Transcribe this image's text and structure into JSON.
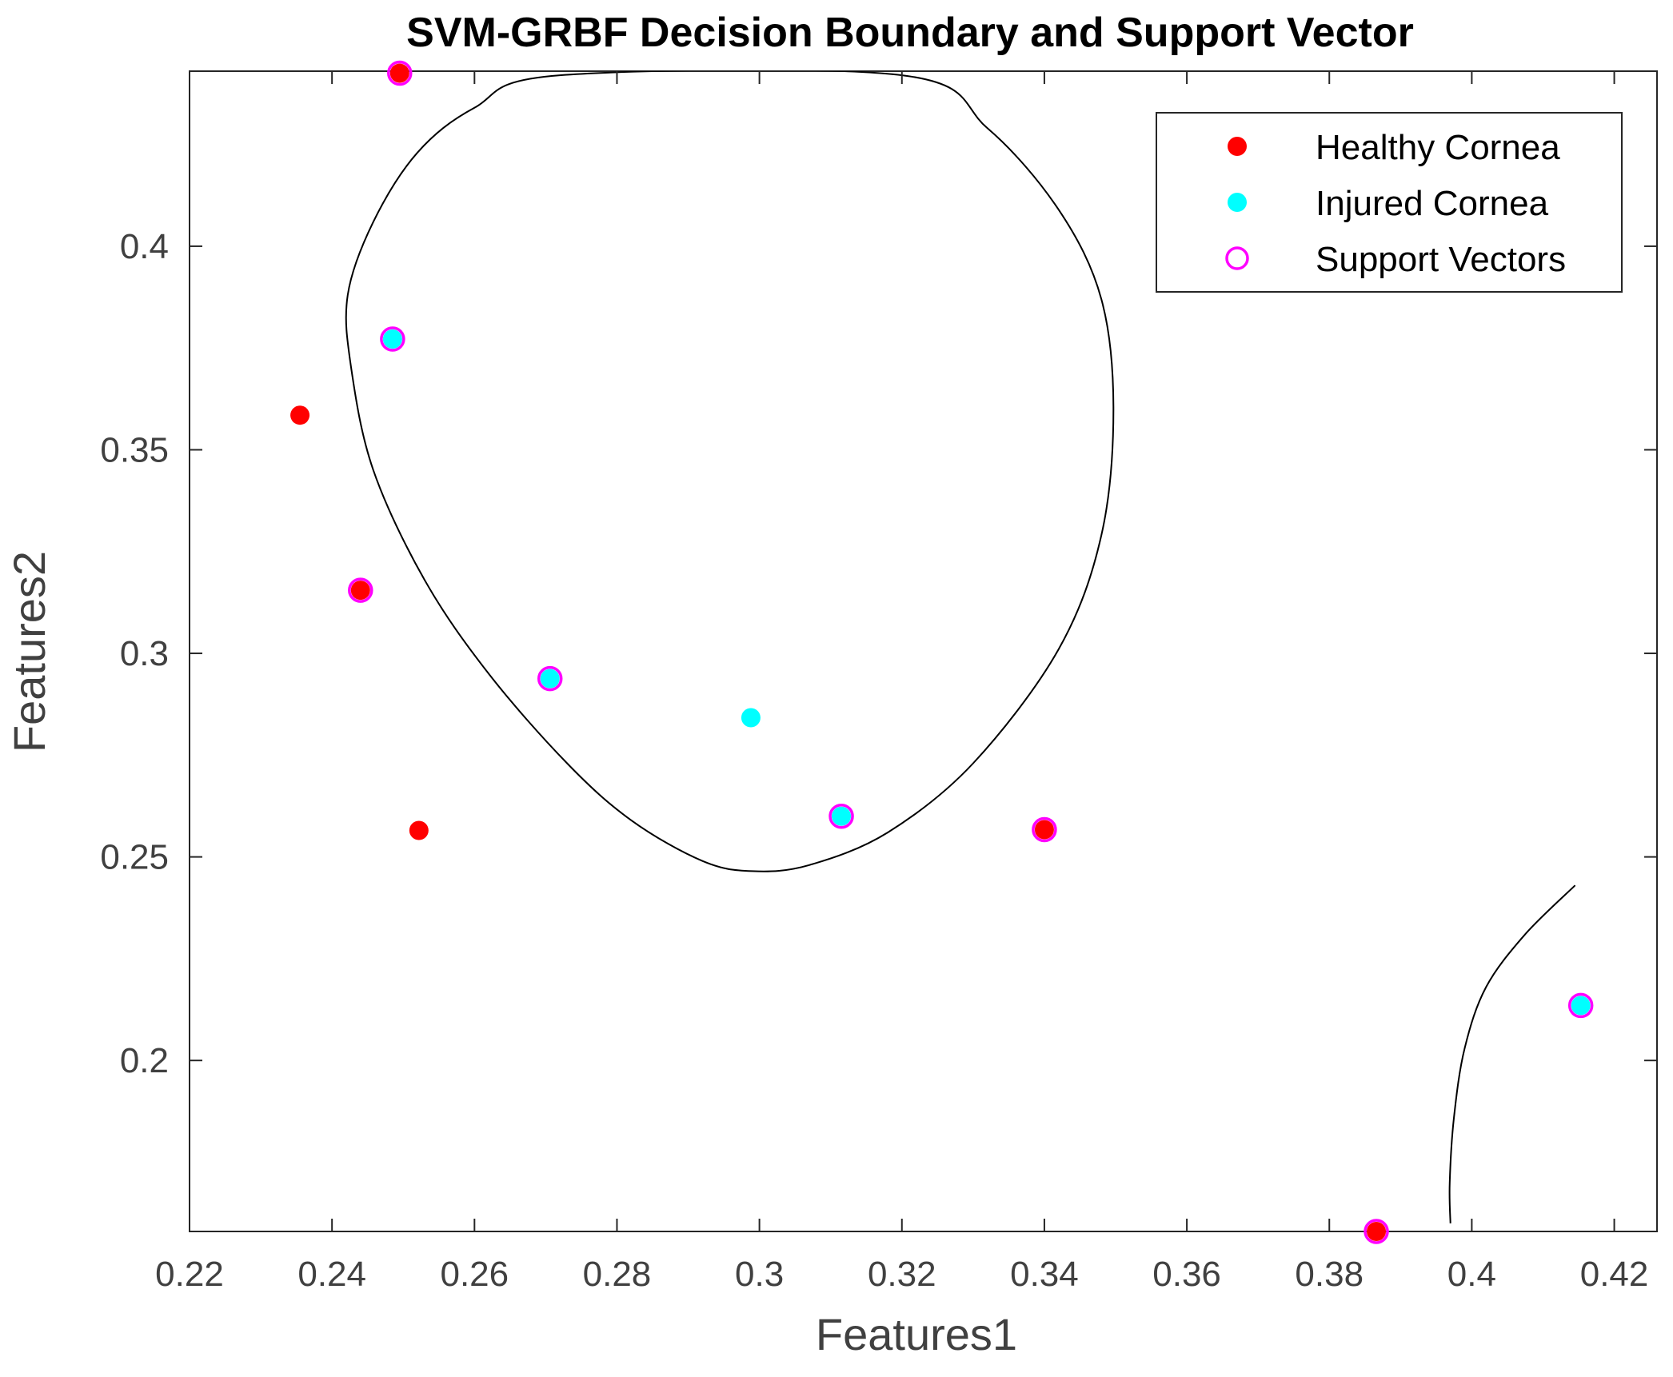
{
  "chart_data": {
    "type": "scatter",
    "title": "SVM-GRBF Decision Boundary and Support Vector",
    "xlabel": "Features1",
    "ylabel": "Features2",
    "xlim": [
      0.22,
      0.426
    ],
    "ylim": [
      0.158,
      0.443
    ],
    "x_ticks": [
      0.22,
      0.24,
      0.26,
      0.28,
      0.3,
      0.32,
      0.34,
      0.36,
      0.38,
      0.4,
      0.42
    ],
    "x_tick_labels": [
      "0.22",
      "0.24",
      "0.26",
      "0.28",
      "0.3",
      "0.32",
      "0.34",
      "0.36",
      "0.38",
      "0.4",
      "0.42"
    ],
    "y_ticks": [
      0.2,
      0.25,
      0.3,
      0.35,
      0.4
    ],
    "y_tick_labels": [
      "0.2",
      "0.25",
      "0.3",
      "0.35",
      "0.4"
    ],
    "grid": false,
    "legend_position": "top-right",
    "legend": [
      {
        "label": "Healthy Cornea",
        "marker": "filled-circle",
        "color": "#ff0000"
      },
      {
        "label": "Injured Cornea",
        "marker": "filled-circle",
        "color": "#00ffff"
      },
      {
        "label": "Support Vectors",
        "marker": "open-circle",
        "color": "#ff00ff"
      }
    ],
    "series": [
      {
        "name": "Healthy Cornea",
        "color": "#ff0000",
        "points": [
          {
            "x": 0.2495,
            "y": 0.4425
          },
          {
            "x": 0.2355,
            "y": 0.3585
          },
          {
            "x": 0.244,
            "y": 0.3155
          },
          {
            "x": 0.2522,
            "y": 0.2565
          },
          {
            "x": 0.34,
            "y": 0.2567
          },
          {
            "x": 0.3866,
            "y": 0.158
          }
        ]
      },
      {
        "name": "Injured Cornea",
        "color": "#00ffff",
        "points": [
          {
            "x": 0.2485,
            "y": 0.3772
          },
          {
            "x": 0.2706,
            "y": 0.2938
          },
          {
            "x": 0.2988,
            "y": 0.2842
          },
          {
            "x": 0.3115,
            "y": 0.26
          },
          {
            "x": 0.4153,
            "y": 0.2135
          }
        ]
      },
      {
        "name": "Support Vectors",
        "color": "#ff00ff",
        "points": [
          {
            "x": 0.2495,
            "y": 0.4425
          },
          {
            "x": 0.2485,
            "y": 0.3772
          },
          {
            "x": 0.244,
            "y": 0.3155
          },
          {
            "x": 0.2706,
            "y": 0.2938
          },
          {
            "x": 0.3115,
            "y": 0.26
          },
          {
            "x": 0.34,
            "y": 0.2567
          },
          {
            "x": 0.3866,
            "y": 0.158
          },
          {
            "x": 0.4153,
            "y": 0.2135
          }
        ]
      }
    ],
    "decision_boundaries": [
      {
        "name": "boundary-closed",
        "closed": true,
        "points": [
          [
            0.272,
            0.442
          ],
          [
            0.26,
            0.434
          ],
          [
            0.252,
            0.423
          ],
          [
            0.2458,
            0.406
          ],
          [
            0.2422,
            0.388
          ],
          [
            0.2427,
            0.37
          ],
          [
            0.2458,
            0.345
          ],
          [
            0.253,
            0.318
          ],
          [
            0.262,
            0.295
          ],
          [
            0.273,
            0.273
          ],
          [
            0.282,
            0.259
          ],
          [
            0.292,
            0.249
          ],
          [
            0.299,
            0.2465
          ],
          [
            0.307,
            0.248
          ],
          [
            0.318,
            0.256
          ],
          [
            0.33,
            0.273
          ],
          [
            0.342,
            0.301
          ],
          [
            0.348,
            0.329
          ],
          [
            0.3497,
            0.36
          ],
          [
            0.348,
            0.387
          ],
          [
            0.342,
            0.409
          ],
          [
            0.332,
            0.429
          ],
          [
            0.32,
            0.442
          ]
        ]
      },
      {
        "name": "boundary-open",
        "closed": false,
        "points": [
          [
            0.4145,
            0.243
          ],
          [
            0.4075,
            0.231
          ],
          [
            0.402,
            0.218
          ],
          [
            0.399,
            0.203
          ],
          [
            0.3975,
            0.186
          ],
          [
            0.3969,
            0.17
          ],
          [
            0.397,
            0.16
          ]
        ]
      }
    ]
  }
}
